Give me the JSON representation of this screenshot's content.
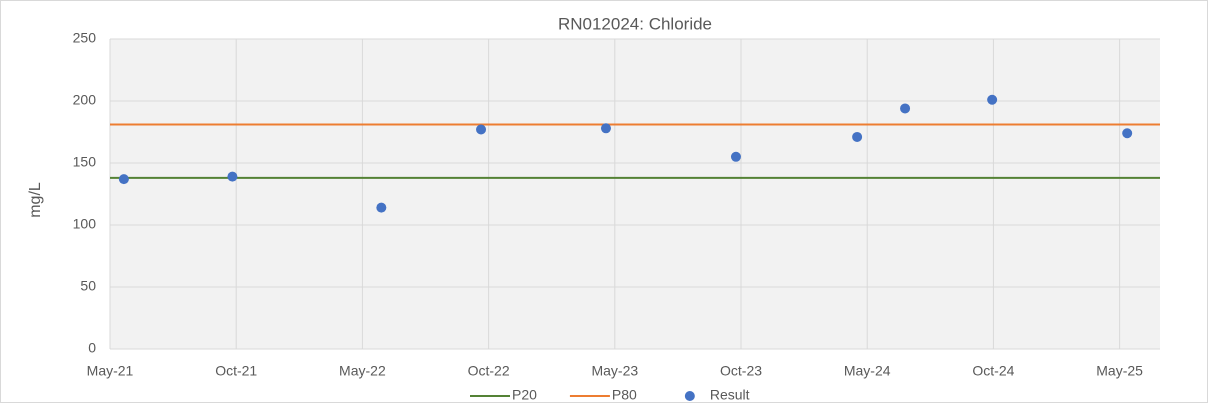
{
  "chart_data": {
    "type": "scatter",
    "title": "RN012024: Chloride",
    "y_label": "mg/L",
    "xlim": [
      0,
      8.32
    ],
    "xticks": [
      {
        "value": 0,
        "label": "May-21"
      },
      {
        "value": 1,
        "label": "Oct-21"
      },
      {
        "value": 2,
        "label": "May-22"
      },
      {
        "value": 3,
        "label": "Oct-22"
      },
      {
        "value": 4,
        "label": "May-23"
      },
      {
        "value": 5,
        "label": "Oct-23"
      },
      {
        "value": 6,
        "label": "May-24"
      },
      {
        "value": 7,
        "label": "Oct-24"
      },
      {
        "value": 8,
        "label": "May-25"
      }
    ],
    "ylim": [
      0,
      250
    ],
    "yticks": [
      0,
      50,
      100,
      150,
      200,
      250
    ],
    "grid": true,
    "legend": "bottom",
    "series": [
      {
        "name": "P20",
        "kind": "line",
        "color": "#548235",
        "x": [
          0,
          8.32
        ],
        "values": [
          138,
          138
        ]
      },
      {
        "name": "P80",
        "kind": "line",
        "color": "#ed7d31",
        "x": [
          0,
          8.32
        ],
        "values": [
          181,
          181
        ]
      },
      {
        "name": "Result",
        "kind": "points",
        "color": "#4472c4",
        "x": [
          0.11,
          0.97,
          2.15,
          2.94,
          3.93,
          4.96,
          5.92,
          6.3,
          6.99,
          8.06
        ],
        "values": [
          137,
          139,
          114,
          177,
          178,
          155,
          171,
          194,
          201,
          174
        ]
      }
    ]
  }
}
